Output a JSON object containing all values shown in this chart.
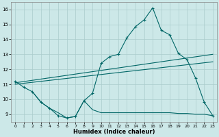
{
  "xlabel": "Humidex (Indice chaleur)",
  "ylabel": "",
  "xlim": [
    -0.5,
    23.5
  ],
  "ylim": [
    8.5,
    16.5
  ],
  "yticks": [
    9,
    10,
    11,
    12,
    13,
    14,
    15,
    16
  ],
  "xticks": [
    0,
    1,
    2,
    3,
    4,
    5,
    6,
    7,
    8,
    9,
    10,
    11,
    12,
    13,
    14,
    15,
    16,
    17,
    18,
    19,
    20,
    21,
    22,
    23
  ],
  "bg_color": "#cce8e8",
  "grid_color": "#aacccc",
  "line_color": "#006666",
  "line1_x": [
    0,
    1,
    2,
    3,
    4,
    5,
    6,
    7,
    8,
    9,
    10,
    11,
    12,
    13,
    14,
    15,
    16,
    17,
    18,
    19,
    20,
    21,
    22,
    23
  ],
  "line1_y": [
    11.2,
    10.8,
    10.5,
    9.8,
    9.4,
    8.9,
    8.75,
    8.85,
    9.9,
    10.4,
    12.4,
    12.85,
    13.0,
    14.1,
    14.85,
    15.3,
    16.1,
    14.6,
    14.3,
    13.05,
    12.65,
    11.4,
    9.8,
    8.9
  ],
  "line2_x": [
    0,
    23
  ],
  "line2_y": [
    11.1,
    13.0
  ],
  "line3_x": [
    0,
    23
  ],
  "line3_y": [
    11.0,
    12.5
  ],
  "line4_x": [
    2,
    3,
    4,
    5,
    6,
    7,
    8,
    9,
    10,
    11,
    12,
    13,
    14,
    15,
    16,
    17,
    18,
    19,
    20,
    21,
    22,
    23
  ],
  "line4_y": [
    10.5,
    9.8,
    9.4,
    9.1,
    8.75,
    8.85,
    9.9,
    9.3,
    9.1,
    9.1,
    9.1,
    9.1,
    9.1,
    9.1,
    9.1,
    9.1,
    9.1,
    9.05,
    9.05,
    9.0,
    9.0,
    8.9
  ]
}
